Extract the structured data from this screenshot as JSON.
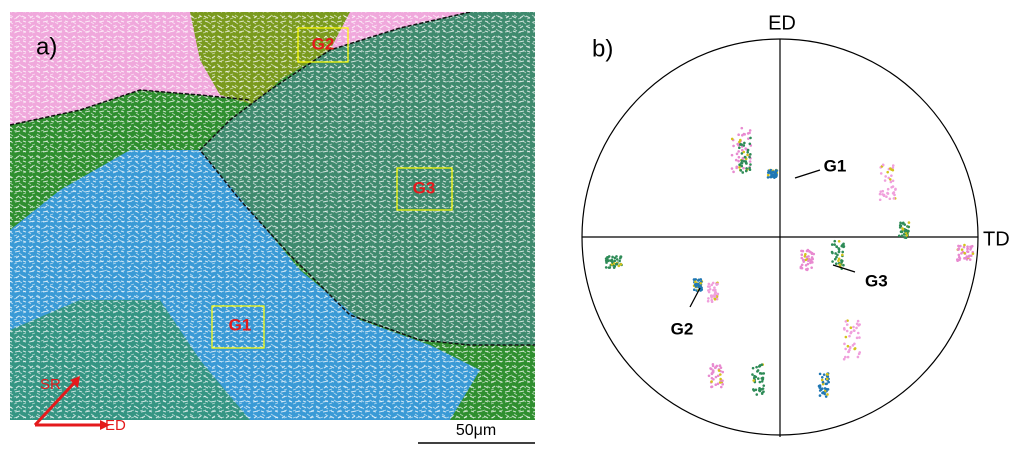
{
  "panel_a": {
    "label": "a)",
    "grain_labels": [
      "G2",
      "G3",
      "G1"
    ],
    "axes": [
      "SR",
      "ED"
    ],
    "scale_bar": "50μm"
  },
  "panel_b": {
    "label": "b)",
    "axis_top": "ED",
    "axis_right": "TD",
    "annotations": [
      "G1",
      "G3",
      "G2"
    ]
  }
}
